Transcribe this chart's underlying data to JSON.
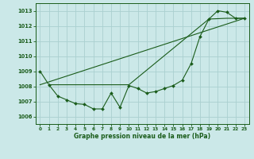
{
  "title": "Graphe pression niveau de la mer (hPa)",
  "bg_color": "#cbe8e8",
  "grid_color": "#aad0d0",
  "line_color": "#1a5c1a",
  "xlim": [
    -0.5,
    23.5
  ],
  "ylim": [
    1005.5,
    1013.5
  ],
  "yticks": [
    1006,
    1007,
    1008,
    1009,
    1010,
    1011,
    1012,
    1013
  ],
  "xticks": [
    0,
    1,
    2,
    3,
    4,
    5,
    6,
    7,
    8,
    9,
    10,
    11,
    12,
    13,
    14,
    15,
    16,
    17,
    18,
    19,
    20,
    21,
    22,
    23
  ],
  "curve1_x": [
    0,
    1,
    2,
    3,
    4,
    5,
    6,
    7,
    8,
    9,
    10,
    11,
    12,
    13,
    14,
    15,
    16,
    17,
    18,
    19,
    20,
    21,
    22,
    23
  ],
  "curve1_y": [
    1009.0,
    1008.1,
    1007.35,
    1007.1,
    1006.85,
    1006.8,
    1006.5,
    1006.5,
    1007.55,
    1006.6,
    1008.05,
    1007.85,
    1007.55,
    1007.65,
    1007.85,
    1008.05,
    1008.4,
    1009.5,
    1011.3,
    1012.45,
    1013.0,
    1012.9,
    1012.5,
    1012.5
  ],
  "curve2_x": [
    0,
    23
  ],
  "curve2_y": [
    1008.1,
    1012.5
  ],
  "curve3_x": [
    1,
    3,
    10,
    19,
    21,
    23
  ],
  "curve3_y": [
    1008.1,
    1008.1,
    1008.1,
    1012.45,
    1012.5,
    1012.5
  ]
}
